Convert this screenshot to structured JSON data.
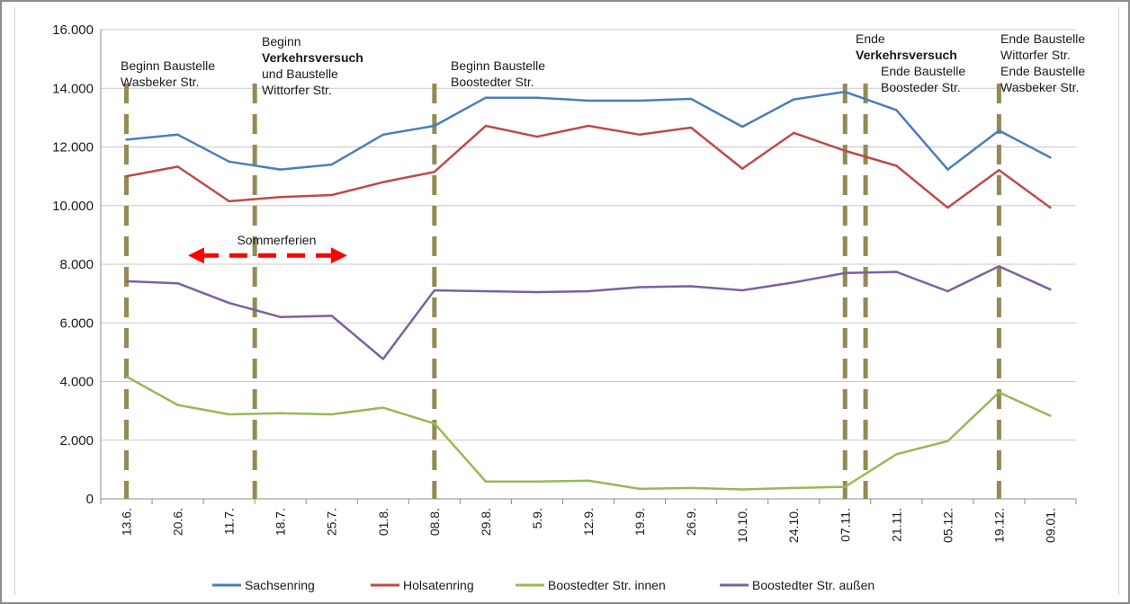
{
  "chart_data": {
    "type": "line",
    "categories": [
      "13.6.",
      "20.6.",
      "11.7.",
      "18.7.",
      "25.7.",
      "01.8.",
      "08.8.",
      "29.8.",
      "5.9.",
      "12.9.",
      "19.9.",
      "26.9.",
      "10.10.",
      "24.10.",
      "07.11.",
      "21.11.",
      "05.12.",
      "19.12.",
      "09.01."
    ],
    "y_ticks": [
      "0",
      "2.000",
      "4.000",
      "6.000",
      "8.000",
      "10.000",
      "12.000",
      "14.000",
      "16.000"
    ],
    "ylim": [
      0,
      16000
    ],
    "grid": true,
    "legend_position": "bottom",
    "series": [
      {
        "name": "Sachsenring",
        "color": "#4a7ebb",
        "values": [
          12250,
          12420,
          11500,
          11230,
          11400,
          12420,
          12720,
          13680,
          13680,
          13580,
          13580,
          13640,
          12690,
          13620,
          13880,
          13260,
          11230,
          12560,
          11640
        ]
      },
      {
        "name": "Holsatenring",
        "color": "#be4b48",
        "values": [
          11000,
          11330,
          10150,
          10290,
          10360,
          10800,
          11150,
          12720,
          12350,
          12720,
          12420,
          12660,
          11260,
          12480,
          11870,
          11360,
          9930,
          11210,
          9930
        ]
      },
      {
        "name": "Boostedter Str. innen",
        "color": "#98b954",
        "values": [
          4170,
          3200,
          2880,
          2920,
          2880,
          3110,
          2570,
          590,
          590,
          620,
          340,
          370,
          320,
          370,
          410,
          1520,
          1970,
          3630,
          2830
        ]
      },
      {
        "name": "Boostedter Str. außen",
        "color": "#7d60a0",
        "values": [
          7420,
          7350,
          6680,
          6200,
          6240,
          4770,
          7110,
          7080,
          7050,
          7080,
          7220,
          7250,
          7110,
          7380,
          7700,
          7740,
          7080,
          7930,
          7140
        ]
      }
    ],
    "markers": [
      {
        "after_index": 0.0,
        "lines": [
          {
            "text": "Beginn Baustelle",
            "bold": false
          },
          {
            "text": "Wasbeker Str.",
            "bold": false
          }
        ]
      },
      {
        "after_index": 2.5,
        "lines": [
          {
            "text": "Beginn",
            "bold": false
          },
          {
            "text": "Verkehrsversuch",
            "bold": true
          },
          {
            "text": "und Baustelle",
            "bold": false
          },
          {
            "text": "Wittorfer Str.",
            "bold": false
          }
        ]
      },
      {
        "after_index": 6.0,
        "lines": [
          {
            "text": "Beginn Baustelle",
            "bold": false
          },
          {
            "text": "Boostedter  Str.",
            "bold": false
          }
        ]
      },
      {
        "after_index": 14.0,
        "lines": [
          {
            "text": "Ende",
            "bold": false
          },
          {
            "text": "Verkehrsversuch",
            "bold": true
          }
        ]
      },
      {
        "after_index": 14.4,
        "lines": [
          {
            "text": "Ende Baustelle",
            "bold": false
          },
          {
            "text": "Boosteder Str.",
            "bold": false
          }
        ]
      },
      {
        "after_index": 17.0,
        "lines": [
          {
            "text": "Ende Baustelle",
            "bold": false
          },
          {
            "text": "Wittorfer Str.",
            "bold": false
          },
          {
            "text": "Ende Baustelle",
            "bold": false
          },
          {
            "text": "Wasbeker Str.",
            "bold": false
          }
        ]
      }
    ],
    "annotation": {
      "text": "Sommerferien",
      "from_index": 1.2,
      "to_index": 4.3,
      "value": 8300,
      "color": "#ff0000"
    }
  }
}
